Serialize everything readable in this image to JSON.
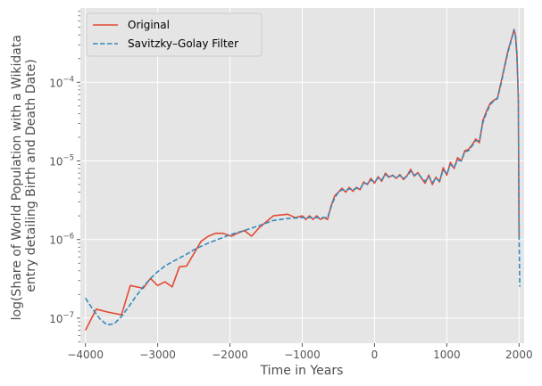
{
  "chart_data": {
    "type": "line",
    "xlabel": "Time in Years",
    "ylabel_lines": [
      "log(Share of World Population with a Wikidata",
      "entry detailing Birth and Death Date)"
    ],
    "xlim": [
      -4070,
      2070
    ],
    "ylim": [
      4.8e-08,
      0.00088
    ],
    "yscale": "log",
    "grid": true,
    "legend_position": "top-left",
    "x_ticks": [
      {
        "value": -4000,
        "label": "−4000"
      },
      {
        "value": -3000,
        "label": "−3000"
      },
      {
        "value": -2000,
        "label": "−2000"
      },
      {
        "value": -1000,
        "label": "−1000"
      },
      {
        "value": 0,
        "label": "0"
      },
      {
        "value": 1000,
        "label": "1000"
      },
      {
        "value": 2000,
        "label": "2000"
      }
    ],
    "y_ticks": [
      {
        "value": 1e-07,
        "base": "10",
        "exp": "−7"
      },
      {
        "value": 1e-06,
        "base": "10",
        "exp": "−6"
      },
      {
        "value": 1e-05,
        "base": "10",
        "exp": "−5"
      },
      {
        "value": 0.0001,
        "base": "10",
        "exp": "−4"
      }
    ],
    "series": [
      {
        "name": "Original",
        "color": "#e24a33",
        "style": "solid",
        "x": [
          -4000,
          -3850,
          -3700,
          -3500,
          -3380,
          -3200,
          -3100,
          -3000,
          -2900,
          -2800,
          -2700,
          -2600,
          -2400,
          -2300,
          -2200,
          -2100,
          -1980,
          -1900,
          -1800,
          -1700,
          -1600,
          -1400,
          -1200,
          -1100,
          -1000,
          -950,
          -900,
          -850,
          -800,
          -750,
          -700,
          -650,
          -600,
          -550,
          -500,
          -450,
          -400,
          -350,
          -300,
          -250,
          -200,
          -150,
          -100,
          -50,
          0,
          50,
          100,
          150,
          200,
          250,
          300,
          350,
          400,
          450,
          500,
          550,
          600,
          650,
          700,
          750,
          800,
          850,
          900,
          950,
          1000,
          1050,
          1100,
          1150,
          1200,
          1250,
          1300,
          1350,
          1400,
          1450,
          1500,
          1550,
          1600,
          1650,
          1700,
          1750,
          1800,
          1850,
          1900,
          1930,
          1950,
          1970,
          1990,
          2000,
          2010
        ],
        "y": [
          7e-08,
          1.3e-07,
          1.2e-07,
          1.1e-07,
          2.6e-07,
          2.4e-07,
          3.2e-07,
          2.6e-07,
          2.9e-07,
          2.5e-07,
          4.5e-07,
          4.6e-07,
          9.5e-07,
          1.1e-06,
          1.2e-06,
          1.2e-06,
          1.1e-06,
          1.2e-06,
          1.3e-06,
          1.1e-06,
          1.4e-06,
          2e-06,
          2.1e-06,
          1.9e-06,
          2e-06,
          1.8e-06,
          2e-06,
          1.8e-06,
          2e-06,
          1.8e-06,
          1.9e-06,
          1.8e-06,
          2.7e-06,
          3.6e-06,
          4e-06,
          4.5e-06,
          4e-06,
          4.6e-06,
          4.1e-06,
          4.6e-06,
          4.3e-06,
          5.4e-06,
          5e-06,
          6e-06,
          5.2e-06,
          6.3e-06,
          5.5e-06,
          7e-06,
          6.2e-06,
          6.6e-06,
          6e-06,
          6.7e-06,
          5.8e-06,
          6.5e-06,
          7.8e-06,
          6.4e-06,
          7.1e-06,
          6e-06,
          5.2e-06,
          6.6e-06,
          5e-06,
          6.2e-06,
          5.4e-06,
          8.2e-06,
          6.6e-06,
          9.6e-06,
          8e-06,
          1.1e-05,
          1e-05,
          1.35e-05,
          1.4e-05,
          1.6e-05,
          1.9e-05,
          1.7e-05,
          3.3e-05,
          4.3e-05,
          5.4e-05,
          5.9e-05,
          6.3e-05,
          0.0001,
          0.00016,
          0.00026,
          0.00037,
          0.00047,
          0.00039,
          0.00022,
          6e-05,
          1.1e-06,
          1.1e-06
        ]
      },
      {
        "name": "Savitzky–Golay Filter",
        "color": "#348abd",
        "style": "dashed",
        "x": [
          -4000,
          -3900,
          -3800,
          -3700,
          -3600,
          -3500,
          -3400,
          -3300,
          -3200,
          -3100,
          -3000,
          -2900,
          -2800,
          -2700,
          -2600,
          -2500,
          -2400,
          -2300,
          -2200,
          -2100,
          -2000,
          -1800,
          -1600,
          -1400,
          -1200,
          -1000,
          -800,
          -650,
          -600,
          -550,
          -500,
          -450,
          -400,
          -350,
          -300,
          -250,
          -200,
          -150,
          -100,
          -50,
          0,
          50,
          100,
          150,
          200,
          250,
          300,
          350,
          400,
          450,
          500,
          550,
          600,
          650,
          700,
          750,
          800,
          850,
          900,
          950,
          1000,
          1050,
          1100,
          1150,
          1200,
          1250,
          1300,
          1350,
          1400,
          1450,
          1500,
          1550,
          1600,
          1650,
          1700,
          1750,
          1800,
          1850,
          1900,
          1930,
          1950,
          1970,
          1990,
          2000,
          2010
        ],
        "y": [
          1.8e-07,
          1.3e-07,
          9.8e-08,
          8.2e-08,
          8.5e-08,
          1.05e-07,
          1.4e-07,
          1.9e-07,
          2.5e-07,
          3.2e-07,
          3.9e-07,
          4.6e-07,
          5.2e-07,
          5.8e-07,
          6.5e-07,
          7.4e-07,
          8.2e-07,
          9e-07,
          9.8e-07,
          1.06e-06,
          1.15e-06,
          1.3e-06,
          1.5e-06,
          1.75e-06,
          1.85e-06,
          1.9e-06,
          1.9e-06,
          1.9e-06,
          2.6e-06,
          3.4e-06,
          4e-06,
          4.3e-06,
          4.2e-06,
          4.4e-06,
          4.3e-06,
          4.5e-06,
          4.4e-06,
          5.2e-06,
          5.1e-06,
          5.7e-06,
          5.4e-06,
          6.1e-06,
          5.7e-06,
          6.7e-06,
          6.2e-06,
          6.5e-06,
          6.1e-06,
          6.5e-06,
          6e-06,
          6.4e-06,
          7.4e-06,
          6.6e-06,
          6.9e-06,
          6.1e-06,
          5.5e-06,
          6.3e-06,
          5.3e-06,
          6e-06,
          5.6e-06,
          7.6e-06,
          6.8e-06,
          9e-06,
          8.2e-06,
          1.02e-05,
          1e-05,
          1.3e-05,
          1.35e-05,
          1.55e-05,
          1.8e-05,
          1.8e-05,
          3.1e-05,
          4.1e-05,
          5.2e-05,
          5.8e-05,
          6.2e-05,
          9.5e-05,
          0.000155,
          0.00025,
          0.00036,
          0.00046,
          0.0004,
          0.00023,
          7e-05,
          1.2e-06,
          2.5e-07
        ]
      }
    ]
  }
}
